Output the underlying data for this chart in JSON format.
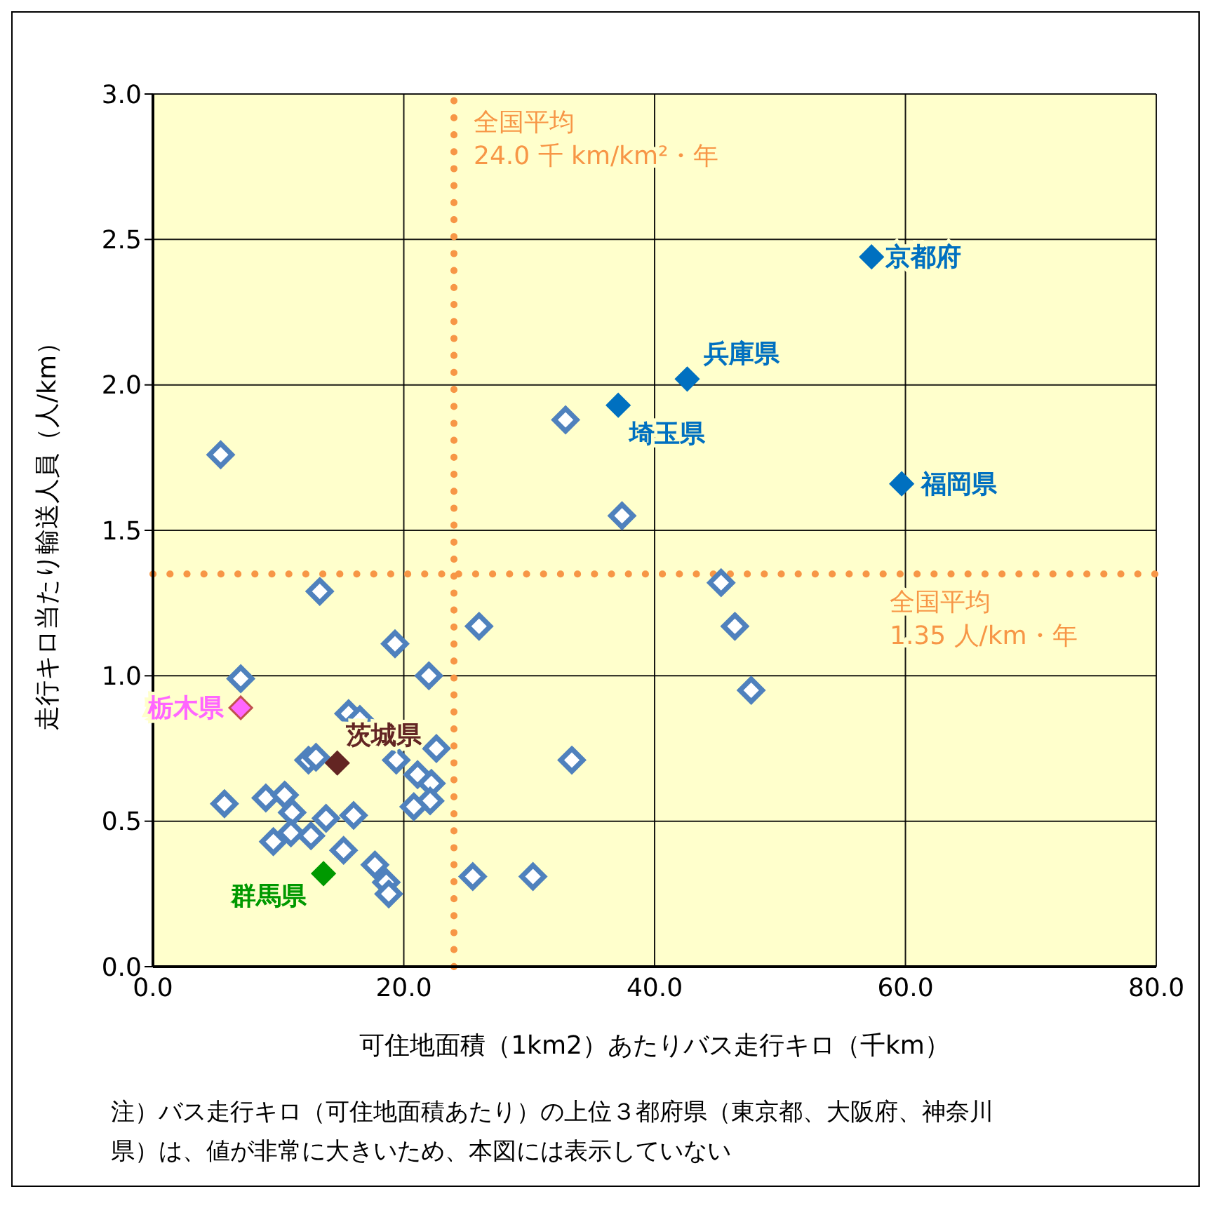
{
  "chart_data": {
    "type": "scatter",
    "xlabel": "可住地面積（1km2）あたりバス走行キロ（千km）",
    "ylabel": "走行キロ当たり輸送人員（人/km）",
    "xlim": [
      0,
      80
    ],
    "xticks": [
      {
        "value": 0,
        "label": "0.0"
      },
      {
        "value": 20,
        "label": "20.0"
      },
      {
        "value": 40,
        "label": "40.0"
      },
      {
        "value": 60,
        "label": "60.0"
      },
      {
        "value": 80,
        "label": "80.0"
      }
    ],
    "ylim": [
      0,
      3
    ],
    "yticks": [
      {
        "value": 0,
        "label": "0.0"
      },
      {
        "value": 0.5,
        "label": "0.5"
      },
      {
        "value": 1,
        "label": "1.0"
      },
      {
        "value": 1.5,
        "label": "1.5"
      },
      {
        "value": 2,
        "label": "2.0"
      },
      {
        "value": 2.5,
        "label": "2.5"
      },
      {
        "value": 3,
        "label": "3.0"
      }
    ],
    "grid": true,
    "marker": "diamond",
    "legend": false,
    "series": [
      {
        "color": "#4f81bd",
        "x": [
          5.4,
          13.3,
          7.0,
          19.3,
          22.0,
          26.0,
          32.9,
          37.4,
          45.3,
          46.4,
          47.7,
          33.4,
          25.5,
          30.3,
          15.6,
          16.5,
          22.6,
          19.4,
          12.4,
          13.0,
          21.1,
          22.2,
          22.1,
          20.8,
          5.7,
          9.0,
          10.5,
          11.1,
          16.0,
          13.8,
          12.6,
          11.0,
          9.6,
          15.2,
          17.7,
          18.6,
          18.8
        ],
        "values": [
          1.76,
          1.29,
          0.99,
          1.11,
          1.0,
          1.17,
          1.88,
          1.55,
          1.32,
          1.17,
          0.95,
          0.71,
          0.31,
          0.31,
          0.87,
          0.85,
          0.75,
          0.71,
          0.71,
          0.72,
          0.66,
          0.63,
          0.57,
          0.55,
          0.56,
          0.58,
          0.59,
          0.53,
          0.52,
          0.51,
          0.45,
          0.46,
          0.43,
          0.4,
          0.35,
          0.29,
          0.25
        ]
      },
      {
        "name": "京都府",
        "color": "#0070c0",
        "x": [
          57.3
        ],
        "values": [
          2.44
        ]
      },
      {
        "name": "兵庫県",
        "color": "#0070c0",
        "x": [
          42.6
        ],
        "values": [
          2.02
        ]
      },
      {
        "name": "埼玉県",
        "color": "#0070c0",
        "x": [
          37.1
        ],
        "values": [
          1.93
        ]
      },
      {
        "name": "福岡県",
        "color": "#0070c0",
        "x": [
          59.7
        ],
        "values": [
          1.66
        ]
      },
      {
        "name": "栃木県",
        "color": "#ff66ff",
        "x": [
          7.0
        ],
        "values": [
          0.89
        ]
      },
      {
        "name": "茨城県",
        "color": "#632523",
        "x": [
          14.7
        ],
        "values": [
          0.7
        ]
      },
      {
        "name": "群馬県",
        "color": "#009900",
        "x": [
          13.6
        ],
        "values": [
          0.32
        ]
      }
    ],
    "ref_lines": [
      {
        "axis": "x",
        "value": 24.0,
        "label": "全国平均\n24.0 千 km/km²・年",
        "color": "#f79646",
        "line_style": "dotted"
      },
      {
        "axis": "y",
        "value": 1.35,
        "label": "全国平均\n1.35 人/km・年",
        "color": "#f79646",
        "line_style": "dotted"
      }
    ],
    "annotations": [
      "注）バス走行キロ（可住地面積あたり）の上位３都府県（東京都、大阪府、神奈川県）は、値が非常に大きいため、本図には表示していない"
    ]
  }
}
